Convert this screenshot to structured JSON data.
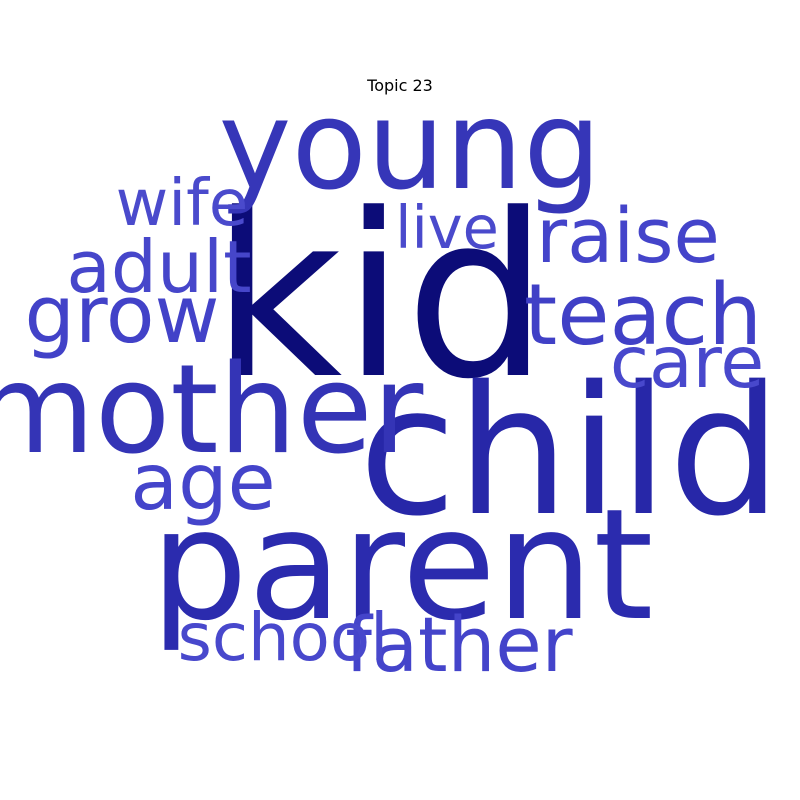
{
  "chart_data": {
    "type": "wordcloud",
    "title": "Topic 23",
    "words": [
      {
        "text": "kid",
        "color": "#0c0c78"
      },
      {
        "text": "child",
        "color": "#2727a8"
      },
      {
        "text": "parent",
        "color": "#2b2bae"
      },
      {
        "text": "young",
        "color": "#3636b8"
      },
      {
        "text": "mother",
        "color": "#3434b6"
      },
      {
        "text": "teach",
        "color": "#4040c6"
      },
      {
        "text": "father",
        "color": "#4444ca"
      },
      {
        "text": "grow",
        "color": "#4242c8"
      },
      {
        "text": "raise",
        "color": "#4444ca"
      },
      {
        "text": "age",
        "color": "#4444ca"
      },
      {
        "text": "care",
        "color": "#4848cc"
      },
      {
        "text": "adult",
        "color": "#4646ca"
      },
      {
        "text": "school",
        "color": "#4848cc"
      },
      {
        "text": "wife",
        "color": "#4a4acc"
      },
      {
        "text": "live",
        "color": "#4a4acc"
      }
    ]
  }
}
